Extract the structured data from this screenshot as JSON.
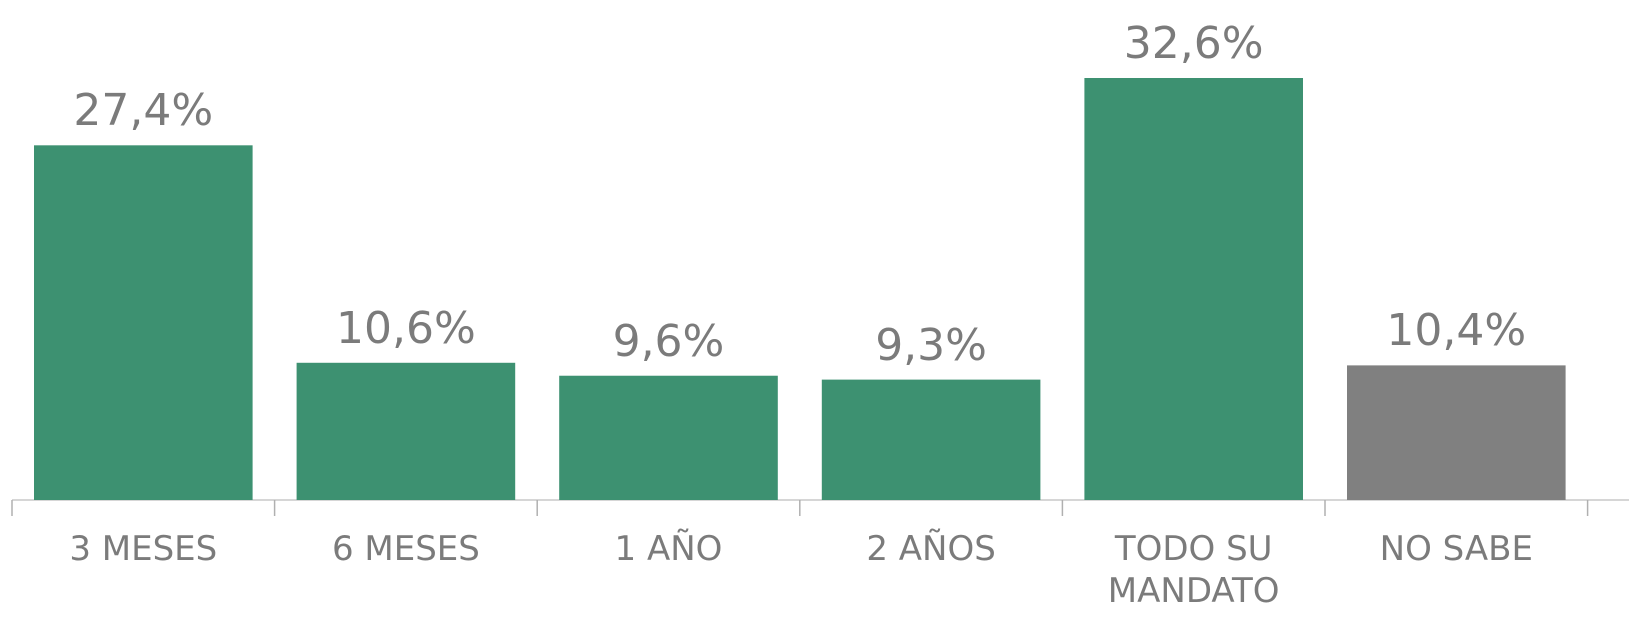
{
  "chart_data": {
    "type": "bar",
    "categories": [
      "3 MESES",
      "6 MESES",
      "1 AÑO",
      "2 AÑOS",
      "TODO SU MANDATO",
      "NO SABE"
    ],
    "values": [
      27.4,
      10.6,
      9.6,
      9.3,
      32.6,
      10.4
    ],
    "value_labels": [
      "27,4%",
      "10,6%",
      "9,6%",
      "9,3%",
      "32,6%",
      "10,4%"
    ],
    "colors": [
      "#3d9171",
      "#3d9171",
      "#3d9171",
      "#3d9171",
      "#3d9171",
      "#808080"
    ],
    "grid": false
  }
}
